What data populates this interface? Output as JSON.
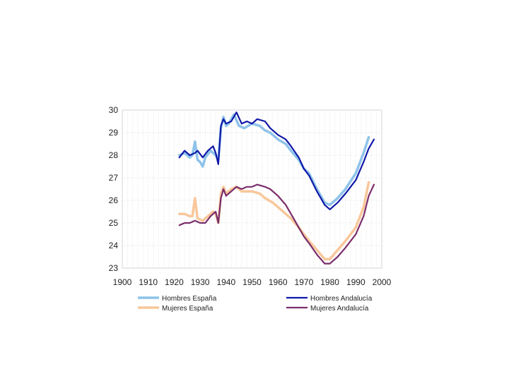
{
  "chart_data": {
    "type": "line",
    "xlim": [
      1900,
      2000
    ],
    "ylim": [
      23,
      30
    ],
    "x_ticks": [
      "1900",
      "1910",
      "1920",
      "1930",
      "1940",
      "1950",
      "1960",
      "1970",
      "1980",
      "1990",
      "2000"
    ],
    "y_ticks": [
      "23",
      "24",
      "25",
      "26",
      "27",
      "28",
      "29",
      "30"
    ],
    "grid": true,
    "legend_position": "bottom",
    "series": [
      {
        "name": "Hombres España",
        "color": "#8ec3ea",
        "points": [
          [
            1922,
            28.0
          ],
          [
            1924,
            28.1
          ],
          [
            1926,
            27.9
          ],
          [
            1927,
            28.0
          ],
          [
            1928,
            28.6
          ],
          [
            1929,
            27.8
          ],
          [
            1930,
            27.7
          ],
          [
            1931,
            27.5
          ],
          [
            1932,
            27.9
          ],
          [
            1934,
            28.2
          ],
          [
            1936,
            28.0
          ],
          [
            1937,
            27.8
          ],
          [
            1938,
            29.2
          ],
          [
            1939,
            29.7
          ],
          [
            1940,
            29.3
          ],
          [
            1941,
            29.4
          ],
          [
            1943,
            29.8
          ],
          [
            1945,
            29.3
          ],
          [
            1947,
            29.2
          ],
          [
            1950,
            29.4
          ],
          [
            1953,
            29.3
          ],
          [
            1955,
            29.1
          ],
          [
            1957,
            29.0
          ],
          [
            1960,
            28.7
          ],
          [
            1963,
            28.5
          ],
          [
            1965,
            28.2
          ],
          [
            1968,
            27.8
          ],
          [
            1970,
            27.4
          ],
          [
            1972,
            27.2
          ],
          [
            1975,
            26.5
          ],
          [
            1978,
            25.9
          ],
          [
            1980,
            25.8
          ],
          [
            1983,
            26.1
          ],
          [
            1986,
            26.5
          ],
          [
            1990,
            27.2
          ],
          [
            1993,
            28.1
          ],
          [
            1995,
            28.8
          ]
        ]
      },
      {
        "name": "Hombres Andalucía",
        "color": "#1019a8",
        "points": [
          [
            1922,
            27.9
          ],
          [
            1924,
            28.2
          ],
          [
            1926,
            28.0
          ],
          [
            1928,
            28.1
          ],
          [
            1929,
            28.2
          ],
          [
            1931,
            27.9
          ],
          [
            1933,
            28.2
          ],
          [
            1935,
            28.4
          ],
          [
            1936,
            28.1
          ],
          [
            1937,
            27.6
          ],
          [
            1938,
            29.3
          ],
          [
            1939,
            29.6
          ],
          [
            1940,
            29.4
          ],
          [
            1942,
            29.5
          ],
          [
            1944,
            29.9
          ],
          [
            1946,
            29.4
          ],
          [
            1948,
            29.5
          ],
          [
            1950,
            29.4
          ],
          [
            1952,
            29.6
          ],
          [
            1955,
            29.5
          ],
          [
            1957,
            29.2
          ],
          [
            1960,
            28.9
          ],
          [
            1963,
            28.7
          ],
          [
            1965,
            28.4
          ],
          [
            1968,
            27.9
          ],
          [
            1970,
            27.4
          ],
          [
            1972,
            27.1
          ],
          [
            1975,
            26.4
          ],
          [
            1978,
            25.8
          ],
          [
            1980,
            25.6
          ],
          [
            1983,
            25.9
          ],
          [
            1986,
            26.3
          ],
          [
            1990,
            26.9
          ],
          [
            1993,
            27.7
          ],
          [
            1995,
            28.3
          ],
          [
            1997,
            28.7
          ]
        ]
      },
      {
        "name": "Mujeres España",
        "color": "#f8c79a",
        "points": [
          [
            1922,
            25.4
          ],
          [
            1924,
            25.4
          ],
          [
            1926,
            25.3
          ],
          [
            1927,
            25.3
          ],
          [
            1928,
            26.1
          ],
          [
            1929,
            25.2
          ],
          [
            1931,
            25.1
          ],
          [
            1933,
            25.3
          ],
          [
            1935,
            25.5
          ],
          [
            1936,
            25.4
          ],
          [
            1937,
            25.0
          ],
          [
            1938,
            26.3
          ],
          [
            1939,
            26.6
          ],
          [
            1940,
            26.3
          ],
          [
            1942,
            26.5
          ],
          [
            1944,
            26.6
          ],
          [
            1946,
            26.4
          ],
          [
            1950,
            26.4
          ],
          [
            1953,
            26.3
          ],
          [
            1955,
            26.1
          ],
          [
            1958,
            25.9
          ],
          [
            1960,
            25.7
          ],
          [
            1963,
            25.4
          ],
          [
            1965,
            25.2
          ],
          [
            1968,
            24.8
          ],
          [
            1970,
            24.5
          ],
          [
            1972,
            24.2
          ],
          [
            1975,
            23.8
          ],
          [
            1978,
            23.4
          ],
          [
            1980,
            23.4
          ],
          [
            1983,
            23.8
          ],
          [
            1986,
            24.2
          ],
          [
            1990,
            24.8
          ],
          [
            1993,
            25.7
          ],
          [
            1995,
            26.8
          ]
        ]
      },
      {
        "name": "Mujeres Andalucía",
        "color": "#7a2d6b",
        "points": [
          [
            1922,
            24.9
          ],
          [
            1924,
            25.0
          ],
          [
            1926,
            25.0
          ],
          [
            1928,
            25.1
          ],
          [
            1930,
            25.0
          ],
          [
            1932,
            25.0
          ],
          [
            1934,
            25.3
          ],
          [
            1936,
            25.5
          ],
          [
            1937,
            25.0
          ],
          [
            1938,
            26.1
          ],
          [
            1939,
            26.5
          ],
          [
            1940,
            26.2
          ],
          [
            1942,
            26.4
          ],
          [
            1944,
            26.6
          ],
          [
            1946,
            26.5
          ],
          [
            1948,
            26.6
          ],
          [
            1950,
            26.6
          ],
          [
            1952,
            26.7
          ],
          [
            1955,
            26.6
          ],
          [
            1957,
            26.5
          ],
          [
            1960,
            26.2
          ],
          [
            1963,
            25.8
          ],
          [
            1965,
            25.4
          ],
          [
            1968,
            24.8
          ],
          [
            1970,
            24.4
          ],
          [
            1972,
            24.1
          ],
          [
            1975,
            23.6
          ],
          [
            1978,
            23.2
          ],
          [
            1980,
            23.2
          ],
          [
            1983,
            23.5
          ],
          [
            1986,
            23.9
          ],
          [
            1990,
            24.5
          ],
          [
            1993,
            25.3
          ],
          [
            1995,
            26.2
          ],
          [
            1997,
            26.7
          ]
        ]
      }
    ]
  }
}
